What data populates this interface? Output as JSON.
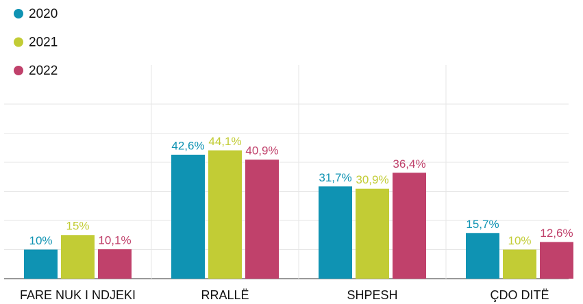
{
  "chart_data": {
    "type": "bar",
    "categories": [
      "FARE NUK I NDJEKI",
      "RRALLË",
      "SHPESH",
      "ÇDO DITË"
    ],
    "series": [
      {
        "name": "2020",
        "color": "#0f93b3",
        "values": [
          10,
          42.6,
          31.7,
          15.7
        ],
        "value_labels": [
          "10%",
          "42,6%",
          "31,7%",
          "15,7%"
        ]
      },
      {
        "name": "2021",
        "color": "#c2cc35",
        "values": [
          15,
          44.1,
          30.9,
          10
        ],
        "value_labels": [
          "15%",
          "44,1%",
          "30,9%",
          "10%"
        ]
      },
      {
        "name": "2022",
        "color": "#c0416b",
        "values": [
          10.1,
          40.9,
          36.4,
          12.6
        ],
        "value_labels": [
          "10,1%",
          "40,9%",
          "36,4%",
          "12,6%"
        ]
      }
    ],
    "ylim": [
      0,
      60
    ],
    "yticks": [
      0,
      10,
      20,
      30,
      40,
      50,
      60
    ],
    "grid": true,
    "legend": "top-left"
  }
}
